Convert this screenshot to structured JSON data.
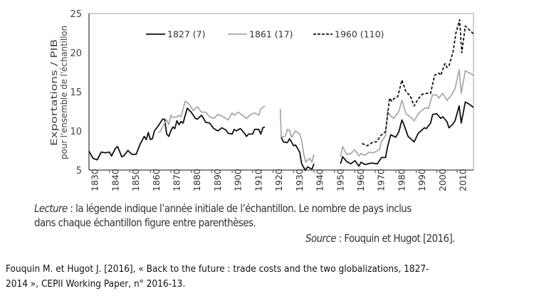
{
  "chart_data": {
    "type": "line",
    "title": "",
    "xlabel": "",
    "ylabel": [
      "Exportations / PIB",
      "pour l'ensemble de l'échantillon"
    ],
    "xlim": [
      1827,
      2015
    ],
    "ylim": [
      5,
      25
    ],
    "yticks": [
      5,
      10,
      15,
      20,
      25
    ],
    "xticks": [
      1830,
      1840,
      1850,
      1860,
      1870,
      1880,
      1890,
      1900,
      1910,
      1920,
      1930,
      1940,
      1950,
      1960,
      1970,
      1980,
      1990,
      2000,
      2010
    ],
    "grid": false,
    "legend_placement": "top",
    "series": [
      {
        "name": "1827 (7)",
        "color": "#111111",
        "dash": "solid",
        "points": [
          [
            1827,
            7.4
          ],
          [
            1829,
            6.5
          ],
          [
            1831,
            6.3
          ],
          [
            1833,
            7.3
          ],
          [
            1835,
            7.2
          ],
          [
            1837,
            7.3
          ],
          [
            1838,
            6.8
          ],
          [
            1840,
            7.8
          ],
          [
            1841,
            8.0
          ],
          [
            1843,
            6.7
          ],
          [
            1844,
            6.8
          ],
          [
            1846,
            7.5
          ],
          [
            1848,
            7.0
          ],
          [
            1850,
            7.0
          ],
          [
            1852,
            8.3
          ],
          [
            1854,
            9.3
          ],
          [
            1855,
            8.9
          ],
          [
            1856,
            9.8
          ],
          [
            1857,
            8.9
          ],
          [
            1858,
            9.0
          ],
          [
            1859,
            10.0
          ],
          [
            1861,
            10.7
          ],
          [
            1863,
            11.5
          ],
          [
            1864,
            11.5
          ],
          [
            1865,
            9.6
          ],
          [
            1866,
            9.3
          ],
          [
            1867,
            10.0
          ],
          [
            1868,
            10.5
          ],
          [
            1869,
            10.3
          ],
          [
            1870,
            11.3
          ],
          [
            1871,
            10.8
          ],
          [
            1872,
            11.2
          ],
          [
            1873,
            11.0
          ],
          [
            1875,
            12.9
          ],
          [
            1877,
            12.4
          ],
          [
            1879,
            11.6
          ],
          [
            1880,
            11.5
          ],
          [
            1882,
            12.0
          ],
          [
            1883,
            11.6
          ],
          [
            1884,
            11.1
          ],
          [
            1886,
            11.0
          ],
          [
            1888,
            10.3
          ],
          [
            1890,
            10.0
          ],
          [
            1892,
            10.4
          ],
          [
            1894,
            10.1
          ],
          [
            1895,
            9.7
          ],
          [
            1897,
            9.6
          ],
          [
            1898,
            10.2
          ],
          [
            1899,
            10.0
          ],
          [
            1901,
            10.3
          ],
          [
            1903,
            9.7
          ],
          [
            1904,
            9.3
          ],
          [
            1905,
            9.6
          ],
          [
            1907,
            9.6
          ],
          [
            1908,
            10.2
          ],
          [
            1910,
            10.2
          ],
          [
            1911,
            9.6
          ],
          [
            1912,
            10.4
          ],
          [
            1913,
            10.5
          ],
          null,
          [
            1921,
            9.2
          ],
          [
            1922,
            8.6
          ],
          [
            1924,
            8.5
          ],
          [
            1925,
            9.0
          ],
          [
            1926,
            8.6
          ],
          [
            1927,
            8.1
          ],
          [
            1928,
            8.2
          ],
          [
            1930,
            7.3
          ],
          [
            1931,
            5.8
          ],
          [
            1932.7,
            5.0
          ],
          [
            1934,
            5.4
          ],
          [
            1936,
            5.1
          ],
          [
            1937,
            5.8
          ],
          null,
          [
            1950,
            5.8
          ],
          [
            1951,
            6.7
          ],
          [
            1953,
            6.1
          ],
          [
            1955,
            5.8
          ],
          [
            1957,
            6.2
          ],
          [
            1959,
            5.5
          ],
          [
            1960,
            6.0
          ],
          [
            1962,
            5.7
          ],
          [
            1965,
            5.9
          ],
          [
            1968,
            5.8
          ],
          [
            1970,
            6.6
          ],
          [
            1972,
            6.6
          ],
          [
            1973,
            8.0
          ],
          [
            1974.5,
            9.5
          ],
          [
            1977,
            9.2
          ],
          [
            1978.5,
            9.9
          ],
          [
            1980,
            11.4
          ],
          [
            1981,
            10.8
          ],
          [
            1983,
            9.3
          ],
          [
            1986,
            8.6
          ],
          [
            1988,
            9.7
          ],
          [
            1991,
            10.4
          ],
          [
            1992,
            10.3
          ],
          [
            1994,
            11.0
          ],
          [
            1995,
            12.1
          ],
          [
            1997,
            12.2
          ],
          [
            1999,
            11.6
          ],
          [
            2000,
            11.8
          ],
          [
            2002,
            11.2
          ],
          [
            2003,
            10.4
          ],
          [
            2005,
            10.9
          ],
          [
            2006,
            11.3
          ],
          [
            2008,
            13.2
          ],
          [
            2009,
            11.0
          ],
          [
            2011,
            13.7
          ],
          [
            2013,
            13.4
          ],
          [
            2015,
            13.0
          ]
        ]
      },
      {
        "name": "1861 (17)",
        "color": "#a6a6a6",
        "dash": "solid",
        "points": [
          [
            1861,
            9.8
          ],
          [
            1862,
            10.0
          ],
          [
            1864,
            11.0
          ],
          [
            1865,
            11.4
          ],
          [
            1866,
            10.8
          ],
          [
            1867,
            12.0
          ],
          [
            1868,
            11.7
          ],
          [
            1870,
            11.8
          ],
          [
            1871,
            12.0
          ],
          [
            1872,
            11.8
          ],
          [
            1874,
            13.8
          ],
          [
            1876,
            13.4
          ],
          [
            1878,
            12.6
          ],
          [
            1880,
            13.1
          ],
          [
            1882,
            12.4
          ],
          [
            1884,
            12.4
          ],
          [
            1886,
            11.8
          ],
          [
            1888,
            11.6
          ],
          [
            1890,
            12.1
          ],
          [
            1892,
            11.9
          ],
          [
            1894,
            11.6
          ],
          [
            1895,
            11.4
          ],
          [
            1897,
            12.3
          ],
          [
            1898,
            12.0
          ],
          [
            1900,
            12.4
          ],
          [
            1902,
            12.0
          ],
          [
            1904,
            11.6
          ],
          [
            1906,
            12.1
          ],
          [
            1908,
            12.3
          ],
          [
            1910,
            12.0
          ],
          [
            1911,
            12.8
          ],
          [
            1913,
            13.2
          ],
          null,
          [
            1920.5,
            12.8
          ],
          [
            1921,
            9.3
          ],
          [
            1923,
            9.3
          ],
          [
            1924,
            10.2
          ],
          [
            1925,
            10.1
          ],
          [
            1926,
            9.2
          ],
          [
            1928,
            10.0
          ],
          [
            1930,
            9.6
          ],
          [
            1931,
            8.7
          ],
          [
            1932,
            7.0
          ],
          [
            1933,
            6.0
          ],
          [
            1934,
            6.3
          ],
          [
            1935,
            6.5
          ],
          [
            1936,
            6.0
          ],
          [
            1937,
            7.0
          ],
          null,
          [
            1950,
            6.7
          ],
          [
            1951,
            8.0
          ],
          [
            1953,
            7.0
          ],
          [
            1955,
            7.1
          ],
          [
            1957,
            7.6
          ],
          [
            1959,
            6.8
          ],
          [
            1960,
            7.1
          ],
          [
            1962,
            6.9
          ],
          [
            1964,
            7.3
          ],
          [
            1966,
            7.2
          ],
          [
            1969,
            7.6
          ],
          [
            1970,
            8.6
          ],
          [
            1972,
            9.4
          ],
          [
            1973,
            12.5
          ],
          [
            1974.5,
            11.9
          ],
          [
            1976,
            11.6
          ],
          [
            1978.5,
            12.5
          ],
          [
            1980,
            13.9
          ],
          [
            1982,
            12.2
          ],
          [
            1984,
            11.8
          ],
          [
            1986,
            11.3
          ],
          [
            1988,
            12.2
          ],
          [
            1991,
            12.9
          ],
          [
            1993,
            12.9
          ],
          [
            1995,
            14.6
          ],
          [
            1997,
            14.6
          ],
          [
            1998,
            14.2
          ],
          [
            2000,
            14.8
          ],
          [
            2002,
            13.9
          ],
          [
            2004,
            14.5
          ],
          [
            2006,
            15.4
          ],
          [
            2008,
            17.8
          ],
          [
            2009,
            14.8
          ],
          [
            2011,
            17.7
          ],
          [
            2015,
            17.1
          ]
        ]
      },
      {
        "name": "1960 (110)",
        "color": "#111111",
        "dash": "dashed",
        "points": [
          [
            1960.5,
            8.4
          ],
          [
            1963,
            8.1
          ],
          [
            1966,
            8.6
          ],
          [
            1967.5,
            8.6
          ],
          [
            1970,
            9.5
          ],
          [
            1972,
            9.9
          ],
          [
            1974,
            14.2
          ],
          [
            1975,
            13.8
          ],
          [
            1976,
            14.1
          ],
          [
            1978,
            14.4
          ],
          [
            1980,
            16.5
          ],
          [
            1982,
            15.0
          ],
          [
            1984,
            14.5
          ],
          [
            1986,
            13.2
          ],
          [
            1988,
            14.1
          ],
          [
            1990,
            14.7
          ],
          [
            1992,
            14.8
          ],
          [
            1994,
            14.8
          ],
          [
            1996,
            17.1
          ],
          [
            1998,
            17.4
          ],
          [
            1999,
            17.1
          ],
          [
            2001,
            18.6
          ],
          [
            2002,
            18.1
          ],
          [
            2003,
            18.3
          ],
          [
            2005,
            20.1
          ],
          [
            2006.4,
            22.5
          ],
          [
            2008.2,
            24.2
          ],
          [
            2009.3,
            20.0
          ],
          [
            2011,
            23.4
          ],
          [
            2013,
            22.9
          ],
          [
            2015,
            22.4
          ]
        ]
      }
    ]
  },
  "notes": {
    "lecture_label": "Lecture",
    "lecture_text_1": " : la légende indique l’année initiale de l’échantillon. Le nombre de pays inclus",
    "lecture_text_2": "dans chaque échantillon figure entre parenthèses.",
    "source_label": "Source",
    "source_text": " : Fouquin et Hugot [2016]."
  },
  "caption": {
    "line_1": "Fouquin M. et Hugot J. [2016], « Back to the future : trade costs and the two globalizations, 1827-",
    "line_2": "2014 », CEPII Working Paper, n° 2016-13."
  }
}
